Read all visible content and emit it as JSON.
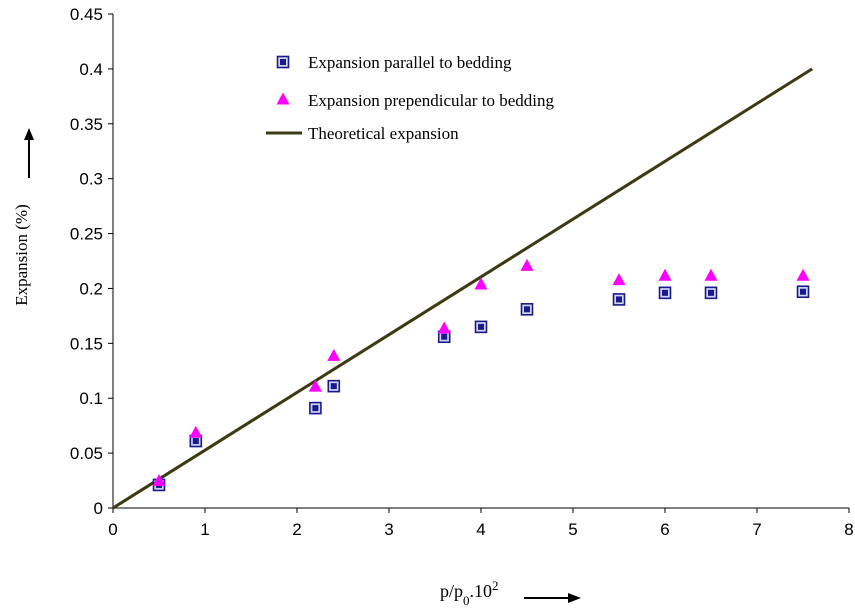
{
  "chart_data": {
    "type": "scatter",
    "title": "",
    "xlabel": {
      "base": "p/p",
      "sub": "0",
      "mid": ".10",
      "sup": "2"
    },
    "ylabel": "Expansion (%)",
    "xlim": [
      0,
      8
    ],
    "ylim": [
      0,
      0.45
    ],
    "x_ticks": [
      "0",
      "1",
      "2",
      "3",
      "4",
      "5",
      "6",
      "7",
      "8"
    ],
    "y_ticks": [
      "0",
      "0.05",
      "0.1",
      "0.15",
      "0.2",
      "0.25",
      "0.3",
      "0.35",
      "0.4",
      "0.45"
    ],
    "grid": false,
    "legend_position": "top-center",
    "series": [
      {
        "name": "Expansion parallel to bedding",
        "kind": "scatter",
        "marker": "square",
        "color": "#1a1a8c",
        "x": [
          0.5,
          0.9,
          2.2,
          2.4,
          3.6,
          4.0,
          4.5,
          5.5,
          6.0,
          6.5,
          7.5
        ],
        "y": [
          0.021,
          0.061,
          0.091,
          0.111,
          0.156,
          0.165,
          0.181,
          0.19,
          0.196,
          0.196,
          0.197
        ]
      },
      {
        "name": "Expansion prependicular to bedding",
        "kind": "scatter",
        "marker": "triangle",
        "color": "#ff00ff",
        "x": [
          0.5,
          0.9,
          2.2,
          2.4,
          3.6,
          4.0,
          4.5,
          5.5,
          6.0,
          6.5,
          7.5
        ],
        "y": [
          0.025,
          0.069,
          0.111,
          0.139,
          0.164,
          0.204,
          0.221,
          0.208,
          0.212,
          0.212,
          0.212
        ]
      },
      {
        "name": "Theoretical expansion",
        "kind": "line",
        "color": "#3d3a12",
        "x": [
          0,
          7.6
        ],
        "y": [
          0,
          0.4
        ]
      }
    ]
  }
}
